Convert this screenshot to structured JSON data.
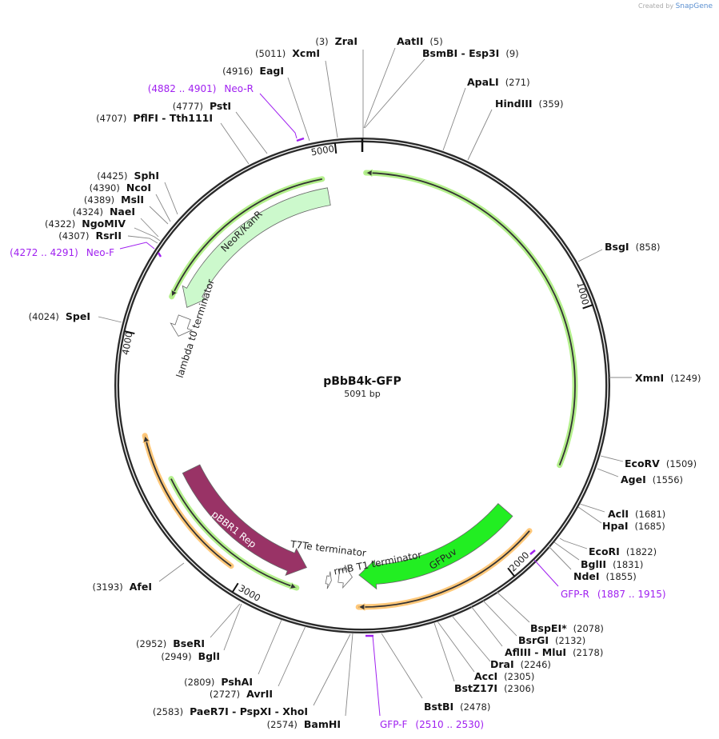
{
  "credit": {
    "prefix": "Created by",
    "brand": "SnapGene"
  },
  "plasmid": {
    "name": "pBbB4k-GFP",
    "length": "5091 bp"
  },
  "ticks": [
    "1000",
    "2000",
    "3000",
    "4000",
    "5000"
  ],
  "enzymes": [
    {
      "name": "ZraI",
      "pos": "(3)"
    },
    {
      "name": "XcmI",
      "pos": "(5011)"
    },
    {
      "name": "EagI",
      "pos": "(4916)"
    },
    {
      "name": "PstI",
      "pos": "(4777)"
    },
    {
      "name": "PflFI - Tth111I",
      "pos": "(4707)"
    },
    {
      "name": "SphI",
      "pos": "(4425)"
    },
    {
      "name": "NcoI",
      "pos": "(4390)"
    },
    {
      "name": "MslI",
      "pos": "(4389)"
    },
    {
      "name": "NaeI",
      "pos": "(4324)"
    },
    {
      "name": "NgoMIV",
      "pos": "(4322)"
    },
    {
      "name": "RsrII",
      "pos": "(4307)"
    },
    {
      "name": "SpeI",
      "pos": "(4024)"
    },
    {
      "name": "AfeI",
      "pos": "(3193)"
    },
    {
      "name": "BseRI",
      "pos": "(2952)"
    },
    {
      "name": "BglI",
      "pos": "(2949)"
    },
    {
      "name": "PshAI",
      "pos": "(2809)"
    },
    {
      "name": "AvrII",
      "pos": "(2727)"
    },
    {
      "name": "PaeR7I - PspXI - XhoI",
      "pos": "(2583)"
    },
    {
      "name": "BamHI",
      "pos": "(2574)"
    },
    {
      "name": "AatII",
      "pos": "(5)"
    },
    {
      "name": "BsmBI - Esp3I",
      "pos": "(9)"
    },
    {
      "name": "ApaLI",
      "pos": "(271)"
    },
    {
      "name": "HindIII",
      "pos": "(359)"
    },
    {
      "name": "BsgI",
      "pos": "(858)"
    },
    {
      "name": "XmnI",
      "pos": "(1249)"
    },
    {
      "name": "EcoRV",
      "pos": "(1509)"
    },
    {
      "name": "AgeI",
      "pos": "(1556)"
    },
    {
      "name": "AclI",
      "pos": "(1681)"
    },
    {
      "name": "HpaI",
      "pos": "(1685)"
    },
    {
      "name": "EcoRI",
      "pos": "(1822)"
    },
    {
      "name": "BglII",
      "pos": "(1831)"
    },
    {
      "name": "NdeI",
      "pos": "(1855)"
    },
    {
      "name": "BspEI*",
      "pos": "(2078)"
    },
    {
      "name": "BsrGI",
      "pos": "(2132)"
    },
    {
      "name": "AflIII - MluI",
      "pos": "(2178)"
    },
    {
      "name": "DraI",
      "pos": "(2246)"
    },
    {
      "name": "AccI",
      "pos": "(2305)"
    },
    {
      "name": "BstZ17I",
      "pos": "(2306)"
    },
    {
      "name": "BstBI",
      "pos": "(2478)"
    }
  ],
  "primers": [
    {
      "name": "Neo-R",
      "range": "(4882 .. 4901)"
    },
    {
      "name": "Neo-F",
      "range": "(4272 .. 4291)"
    },
    {
      "name": "GFP-R",
      "range": "(1887 .. 1915)"
    },
    {
      "name": "GFP-F",
      "range": "(2510 .. 2530)"
    }
  ],
  "features": [
    {
      "name": "NeoR/KanR",
      "color": "#ccf9cc"
    },
    {
      "name": "lambda t0 terminator",
      "color": "#ffffff"
    },
    {
      "name": "pBBR1 Rep",
      "color": "#993366"
    },
    {
      "name": "T7Te terminator",
      "color": "#ffffff"
    },
    {
      "name": "rrnB T1 terminator",
      "color": "#ffffff"
    },
    {
      "name": "GFPuv",
      "color": "#22ee22"
    }
  ],
  "colors": {
    "primer": "#a020f0",
    "orf_line": "#b4f08c",
    "ori_line": "#ffc87a"
  }
}
